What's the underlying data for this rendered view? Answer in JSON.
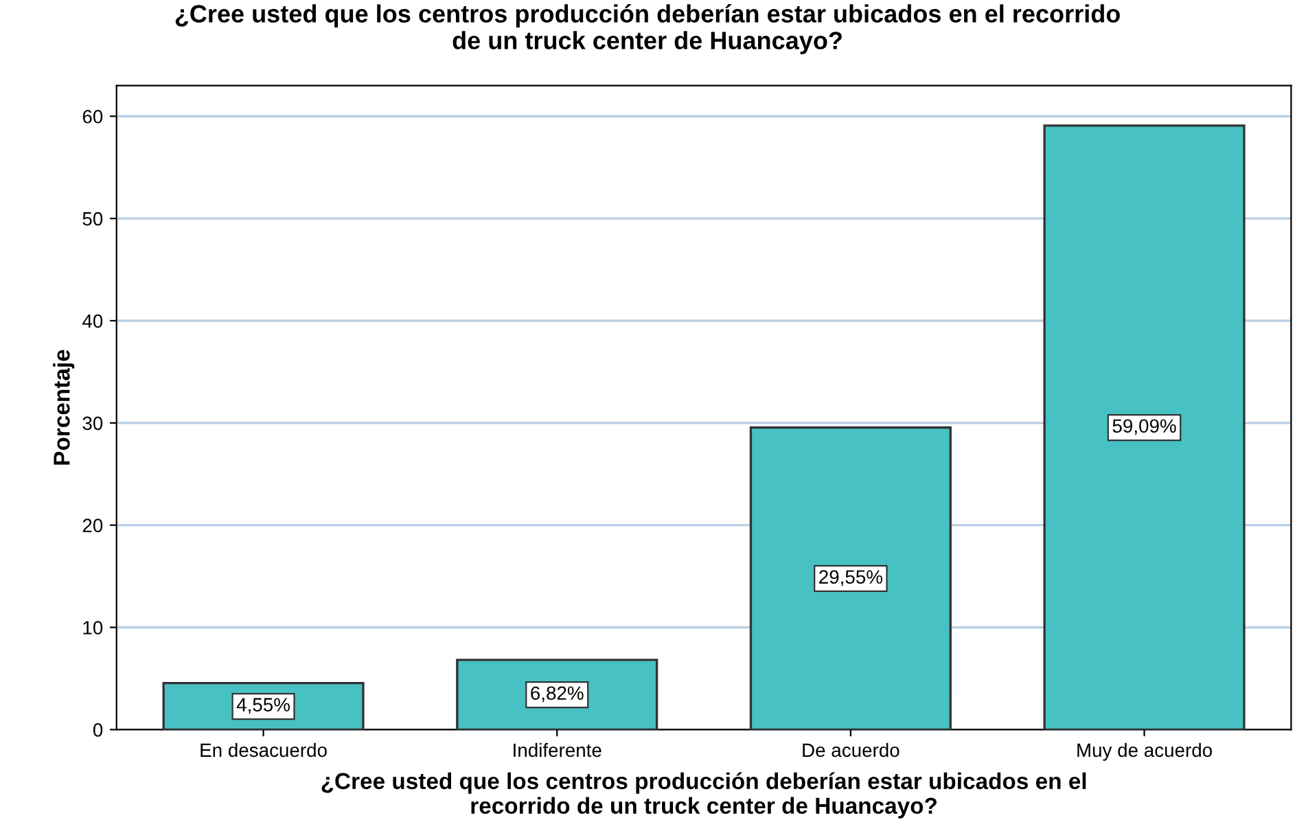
{
  "chart_data": {
    "type": "bar",
    "title": "¿Cree usted que los centros producción deberían estar ubicados en el recorrido\nde un truck center de Huancayo?",
    "xlabel": "¿Cree usted que los centros producción deberían estar ubicados en el\nrecorrido de un truck center de Huancayo?",
    "ylabel": "Porcentaje",
    "categories": [
      "En desacuerdo",
      "Indiferente",
      "De acuerdo",
      "Muy de acuerdo"
    ],
    "values": [
      4.55,
      6.82,
      29.55,
      59.09
    ],
    "value_labels": [
      "4,55%",
      "6,82%",
      "29,55%",
      "59,09%"
    ],
    "color": "#48c1c4",
    "ylim": [
      0,
      63
    ],
    "yticks": [
      0,
      10,
      20,
      30,
      40,
      50,
      60
    ],
    "grid": "y"
  }
}
